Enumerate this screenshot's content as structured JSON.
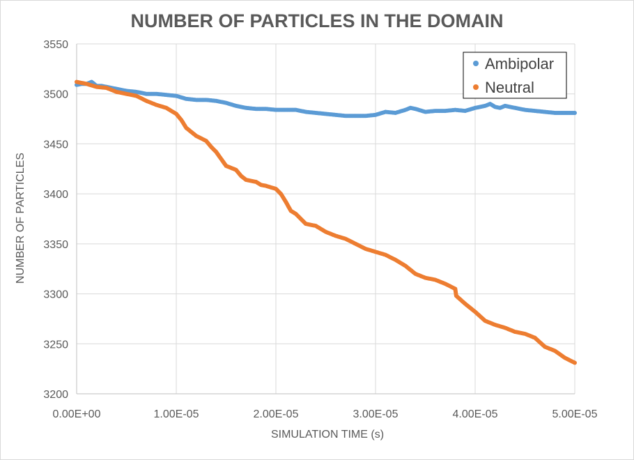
{
  "chart_data": {
    "type": "scatter",
    "title": "NUMBER OF PARTICLES IN THE DOMAIN",
    "xlabel": "SIMULATION TIME (s)",
    "ylabel": "NUMBER OF PARTICLES",
    "xlim": [
      0,
      5e-05
    ],
    "ylim": [
      3200,
      3550
    ],
    "x_ticks": [
      0,
      1e-05,
      2e-05,
      3e-05,
      4e-05,
      5e-05
    ],
    "x_tick_labels": [
      "0.00E+00",
      "1.00E-05",
      "2.00E-05",
      "3.00E-05",
      "4.00E-05",
      "5.00E-05"
    ],
    "y_ticks": [
      3200,
      3250,
      3300,
      3350,
      3400,
      3450,
      3500,
      3550
    ],
    "y_tick_labels": [
      "3200",
      "3250",
      "3300",
      "3350",
      "3400",
      "3450",
      "3500",
      "3550"
    ],
    "grid": true,
    "legend_position": "top-right",
    "series": [
      {
        "name": "Ambipolar",
        "color": "#5B9BD5",
        "x": [
          0,
          5e-07,
          1e-06,
          1.5e-06,
          2e-06,
          2.5e-06,
          3e-06,
          3.5e-06,
          4e-06,
          5e-06,
          6e-06,
          7e-06,
          8e-06,
          9e-06,
          1e-05,
          1.1e-05,
          1.2e-05,
          1.3e-05,
          1.4e-05,
          1.5e-05,
          1.6e-05,
          1.7e-05,
          1.8e-05,
          1.9e-05,
          2e-05,
          2.1e-05,
          2.2e-05,
          2.3e-05,
          2.4e-05,
          2.5e-05,
          2.6e-05,
          2.7e-05,
          2.8e-05,
          2.9e-05,
          3e-05,
          3.1e-05,
          3.2e-05,
          3.3e-05,
          3.35e-05,
          3.4e-05,
          3.5e-05,
          3.6e-05,
          3.7e-05,
          3.8e-05,
          3.9e-05,
          4e-05,
          4.1e-05,
          4.15e-05,
          4.2e-05,
          4.25e-05,
          4.3e-05,
          4.4e-05,
          4.5e-05,
          4.6e-05,
          4.7e-05,
          4.8e-05,
          4.9e-05,
          5e-05
        ],
        "values": [
          3509,
          3510,
          3510,
          3512,
          3508,
          3508,
          3507,
          3506,
          3505,
          3503,
          3502,
          3500,
          3500,
          3499,
          3498,
          3495,
          3494,
          3494,
          3493,
          3491,
          3488,
          3486,
          3485,
          3485,
          3484,
          3484,
          3484,
          3482,
          3481,
          3480,
          3479,
          3478,
          3478,
          3478,
          3479,
          3482,
          3481,
          3484,
          3486,
          3485,
          3482,
          3483,
          3483,
          3484,
          3483,
          3486,
          3488,
          3490,
          3487,
          3486,
          3488,
          3486,
          3484,
          3483,
          3482,
          3481,
          3481,
          3481
        ]
      },
      {
        "name": "Neutral",
        "color": "#ED7D31",
        "x": [
          0,
          1e-06,
          2e-06,
          3e-06,
          4e-06,
          5e-06,
          6e-06,
          7e-06,
          8e-06,
          9e-06,
          1e-05,
          1.05e-05,
          1.1e-05,
          1.15e-05,
          1.2e-05,
          1.3e-05,
          1.35e-05,
          1.4e-05,
          1.45e-05,
          1.5e-05,
          1.6e-05,
          1.65e-05,
          1.7e-05,
          1.75e-05,
          1.8e-05,
          1.85e-05,
          1.9e-05,
          2e-05,
          2.05e-05,
          2.1e-05,
          2.15e-05,
          2.2e-05,
          2.3e-05,
          2.4e-05,
          2.5e-05,
          2.6e-05,
          2.7e-05,
          2.8e-05,
          2.9e-05,
          3e-05,
          3.1e-05,
          3.2e-05,
          3.3e-05,
          3.4e-05,
          3.5e-05,
          3.6e-05,
          3.7e-05,
          3.8e-05,
          3.81e-05,
          3.9e-05,
          4e-05,
          4.1e-05,
          4.2e-05,
          4.3e-05,
          4.4e-05,
          4.5e-05,
          4.6e-05,
          4.7e-05,
          4.8e-05,
          4.9e-05,
          5e-05
        ],
        "values": [
          3512,
          3510,
          3507,
          3506,
          3502,
          3500,
          3498,
          3493,
          3489,
          3486,
          3480,
          3474,
          3466,
          3462,
          3458,
          3453,
          3447,
          3442,
          3435,
          3428,
          3424,
          3418,
          3414,
          3413,
          3412,
          3409,
          3408,
          3405,
          3400,
          3392,
          3383,
          3380,
          3370,
          3368,
          3362,
          3358,
          3355,
          3350,
          3345,
          3342,
          3339,
          3334,
          3328,
          3320,
          3316,
          3314,
          3310,
          3305,
          3298,
          3290,
          3282,
          3273,
          3269,
          3266,
          3262,
          3260,
          3256,
          3247,
          3243,
          3236,
          3231
        ]
      }
    ]
  }
}
